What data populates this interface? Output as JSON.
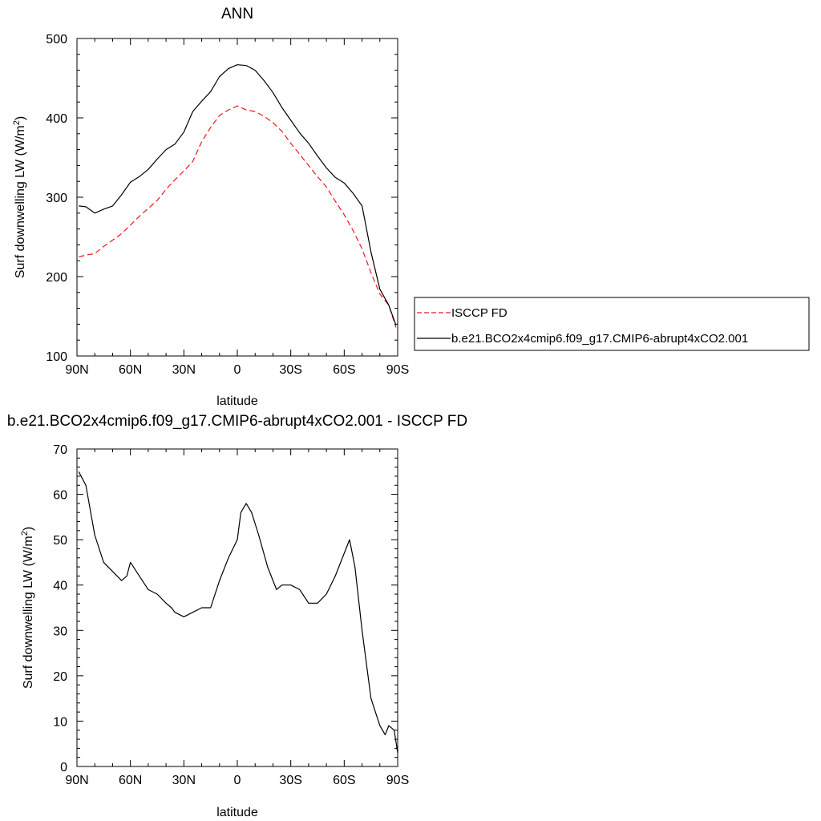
{
  "chart_data": [
    {
      "type": "line",
      "title": "ANN",
      "xlabel": "latitude",
      "ylabel": "Surf downwelling LW (W/m",
      "ylabel_sup": "2",
      "ylabel_end": ")",
      "xlim": [
        90,
        -90
      ],
      "ylim": [
        100,
        500
      ],
      "x_ticks": [
        {
          "value": 90,
          "label": "90N"
        },
        {
          "value": 60,
          "label": "60N"
        },
        {
          "value": 30,
          "label": "30N"
        },
        {
          "value": 0,
          "label": "0"
        },
        {
          "value": -30,
          "label": "30S"
        },
        {
          "value": -60,
          "label": "60S"
        },
        {
          "value": -90,
          "label": "90S"
        }
      ],
      "y_ticks": [
        100,
        200,
        300,
        400,
        500
      ],
      "series": [
        {
          "name": "ISCCP FD",
          "color": "#e8191c",
          "dash": "dashed",
          "points": [
            [
              89,
              225
            ],
            [
              85,
              227
            ],
            [
              80,
              229
            ],
            [
              75,
              238
            ],
            [
              70,
              246
            ],
            [
              65,
              254
            ],
            [
              60,
              265
            ],
            [
              55,
              276
            ],
            [
              50,
              286
            ],
            [
              45,
              296
            ],
            [
              40,
              310
            ],
            [
              35,
              322
            ],
            [
              30,
              333
            ],
            [
              25,
              345
            ],
            [
              20,
              370
            ],
            [
              15,
              388
            ],
            [
              10,
              403
            ],
            [
              5,
              410
            ],
            [
              0,
              415
            ],
            [
              -5,
              410
            ],
            [
              -10,
              408
            ],
            [
              -15,
              402
            ],
            [
              -20,
              394
            ],
            [
              -25,
              383
            ],
            [
              -30,
              368
            ],
            [
              -35,
              354
            ],
            [
              -40,
              340
            ],
            [
              -45,
              326
            ],
            [
              -50,
              313
            ],
            [
              -55,
              295
            ],
            [
              -60,
              278
            ],
            [
              -65,
              258
            ],
            [
              -70,
              235
            ],
            [
              -75,
              205
            ],
            [
              -80,
              178
            ],
            [
              -85,
              164
            ],
            [
              -89,
              136
            ]
          ]
        },
        {
          "name": "b.e21.BCO2x4cmip6.f09_g17.CMIP6-abrupt4xCO2.001",
          "color": "#000000",
          "dash": "solid",
          "points": [
            [
              89,
              289
            ],
            [
              85,
              288
            ],
            [
              80,
              280
            ],
            [
              75,
              285
            ],
            [
              70,
              289
            ],
            [
              65,
              303
            ],
            [
              60,
              319
            ],
            [
              55,
              326
            ],
            [
              50,
              335
            ],
            [
              45,
              348
            ],
            [
              40,
              360
            ],
            [
              35,
              367
            ],
            [
              30,
              382
            ],
            [
              25,
              408
            ],
            [
              20,
              421
            ],
            [
              15,
              433
            ],
            [
              10,
              452
            ],
            [
              5,
              462
            ],
            [
              0,
              467
            ],
            [
              -5,
              466
            ],
            [
              -10,
              460
            ],
            [
              -15,
              447
            ],
            [
              -20,
              432
            ],
            [
              -25,
              413
            ],
            [
              -30,
              397
            ],
            [
              -35,
              381
            ],
            [
              -40,
              368
            ],
            [
              -45,
              352
            ],
            [
              -50,
              337
            ],
            [
              -55,
              325
            ],
            [
              -60,
              318
            ],
            [
              -65,
              305
            ],
            [
              -70,
              289
            ],
            [
              -75,
              231
            ],
            [
              -80,
              184
            ],
            [
              -85,
              164
            ],
            [
              -89,
              139
            ]
          ]
        }
      ],
      "legend": {
        "placement": "right",
        "entries": [
          "ISCCP FD",
          "b.e21.BCO2x4cmip6.f09_g17.CMIP6-abrupt4xCO2.001"
        ]
      }
    },
    {
      "type": "line",
      "title": "b.e21.BCO2x4cmip6.f09_g17.CMIP6-abrupt4xCO2.001 - ISCCP FD",
      "xlabel": "latitude",
      "ylabel": "Surf downwelling LW (W/m",
      "ylabel_sup": "2",
      "ylabel_end": ")",
      "xlim": [
        90,
        -90
      ],
      "ylim": [
        0,
        70
      ],
      "x_ticks": [
        {
          "value": 90,
          "label": "90N"
        },
        {
          "value": 60,
          "label": "60N"
        },
        {
          "value": 30,
          "label": "30N"
        },
        {
          "value": 0,
          "label": "0"
        },
        {
          "value": -30,
          "label": "30S"
        },
        {
          "value": -60,
          "label": "60S"
        },
        {
          "value": -90,
          "label": "90S"
        }
      ],
      "y_ticks": [
        0,
        10,
        20,
        30,
        40,
        50,
        60,
        70
      ],
      "series": [
        {
          "color": "#000000",
          "dash": "solid",
          "points": [
            [
              89,
              65
            ],
            [
              85,
              62
            ],
            [
              80,
              51
            ],
            [
              75,
              45
            ],
            [
              70,
              43
            ],
            [
              65,
              41
            ],
            [
              62,
              42
            ],
            [
              60,
              45
            ],
            [
              55,
              42
            ],
            [
              50,
              39
            ],
            [
              45,
              38
            ],
            [
              40,
              36
            ],
            [
              37,
              35
            ],
            [
              35,
              34
            ],
            [
              30,
              33
            ],
            [
              25,
              34
            ],
            [
              20,
              35
            ],
            [
              15,
              35
            ],
            [
              10,
              41
            ],
            [
              5,
              46
            ],
            [
              0,
              50
            ],
            [
              -2,
              56
            ],
            [
              -5,
              58
            ],
            [
              -8,
              56
            ],
            [
              -12,
              51
            ],
            [
              -17,
              44
            ],
            [
              -22,
              39
            ],
            [
              -25,
              40
            ],
            [
              -30,
              40
            ],
            [
              -35,
              39
            ],
            [
              -40,
              36
            ],
            [
              -45,
              36
            ],
            [
              -50,
              38
            ],
            [
              -55,
              42
            ],
            [
              -60,
              47
            ],
            [
              -63,
              50
            ],
            [
              -66,
              44
            ],
            [
              -70,
              30
            ],
            [
              -75,
              15
            ],
            [
              -80,
              9
            ],
            [
              -83,
              7
            ],
            [
              -85,
              9
            ],
            [
              -88,
              8
            ],
            [
              -90,
              3
            ]
          ]
        }
      ]
    }
  ]
}
